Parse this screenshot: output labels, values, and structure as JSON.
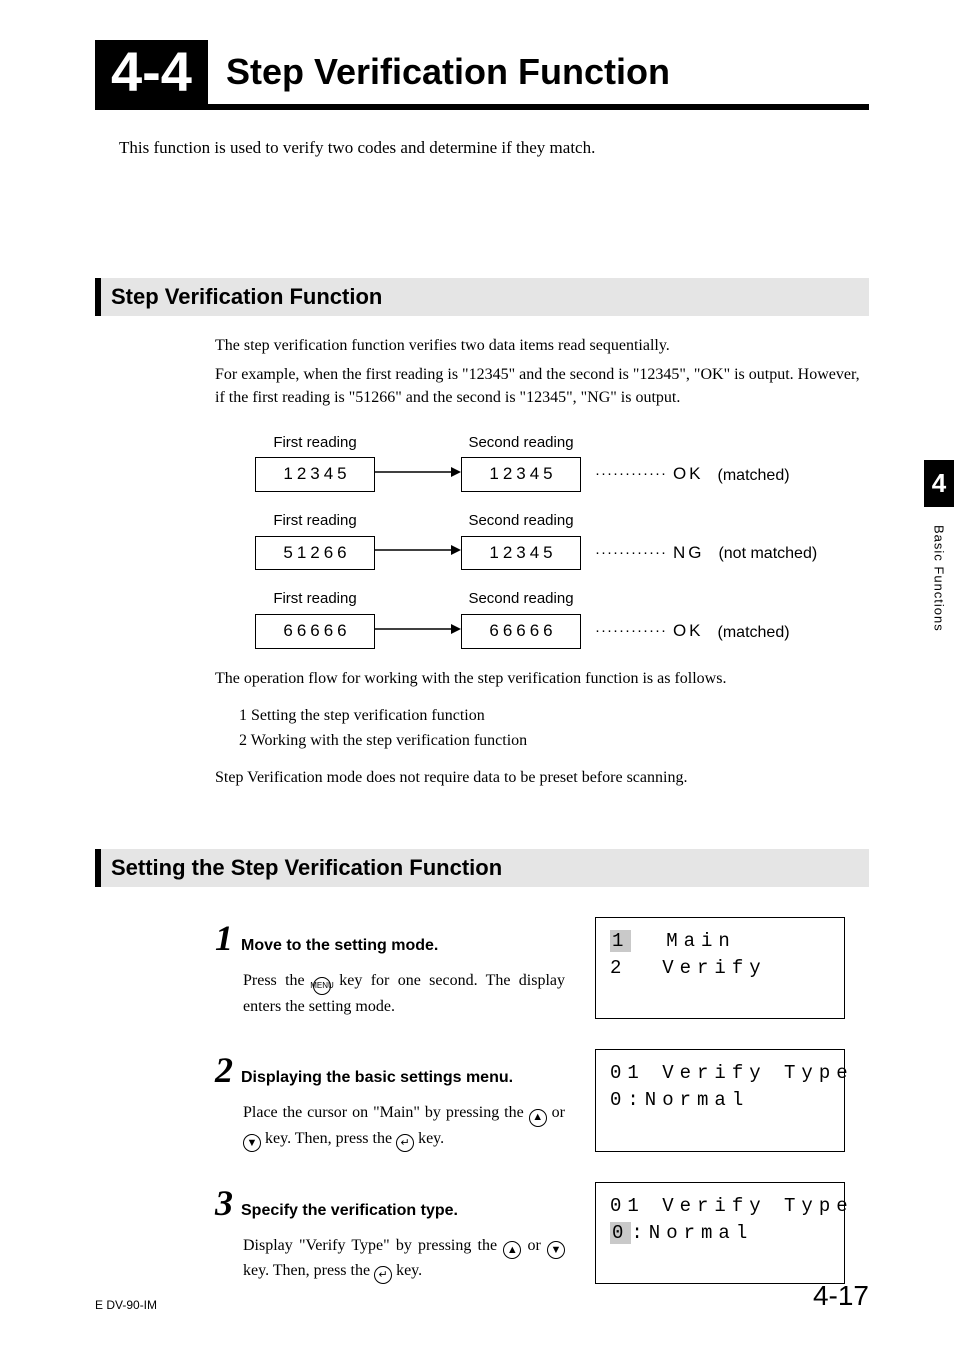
{
  "header": {
    "section_number": "4-4",
    "title": "Step Verification Function"
  },
  "intro": "This function is used to verify two codes and determine if they match.",
  "overview": {
    "heading": "Step Verification Function",
    "p1": "The step verification function verifies two data items read sequentially.",
    "p2": "For example, when the first reading is \"12345\" and the second is \"12345\", \"OK\" is output. However, if the first reading is \"51266\" and the second is \"12345\", \"NG\" is output.",
    "diagram": {
      "first_label": "First reading",
      "second_label": "Second reading",
      "dots": "············",
      "rows": [
        {
          "first": "12345",
          "second": "12345",
          "code": "OK",
          "note": "(matched)"
        },
        {
          "first": "51266",
          "second": "12345",
          "code": "NG",
          "note": "(not matched)"
        },
        {
          "first": "66666",
          "second": "66666",
          "code": "OK",
          "note": "(matched)"
        }
      ]
    },
    "flow_intro": "The operation flow for working with the step verification function is as follows.",
    "flow_items": [
      "1  Setting the step verification function",
      "2  Working with the step verification function"
    ],
    "note": "Step Verification mode does not require data to be preset before scanning."
  },
  "setting": {
    "heading": "Setting the Step Verification Function",
    "menu_key": "MENU",
    "steps": [
      {
        "num": "1",
        "title": "Move to the setting mode.",
        "body_a": "Press the ",
        "body_b": " key for one second. The display enters the setting mode.",
        "lcd": [
          "1  Main",
          "2  Verify"
        ],
        "line1_hl_index": 0
      },
      {
        "num": "2",
        "title": "Displaying the basic settings menu.",
        "body_a": "Place the cursor on \"Main\" by pressing the ",
        "body_b": " or ",
        "body_c": " key. Then, press the ",
        "body_d": " key.",
        "lcd": [
          "01 Verify Type",
          "0:Normal"
        ]
      },
      {
        "num": "3",
        "title": "Specify the verification type.",
        "body_a": "Display \"Verify Type\" by pressing the ",
        "body_b": " or ",
        "body_c": " key. Then, press the ",
        "body_d": " key.",
        "lcd": [
          "01 Verify Type",
          "0:Normal"
        ],
        "line2_hl_index": 0
      }
    ]
  },
  "sidebar": {
    "chapter": "4",
    "text": "Basic Functions"
  },
  "footer": {
    "left": "E DV-90-IM",
    "right": "4-17"
  }
}
